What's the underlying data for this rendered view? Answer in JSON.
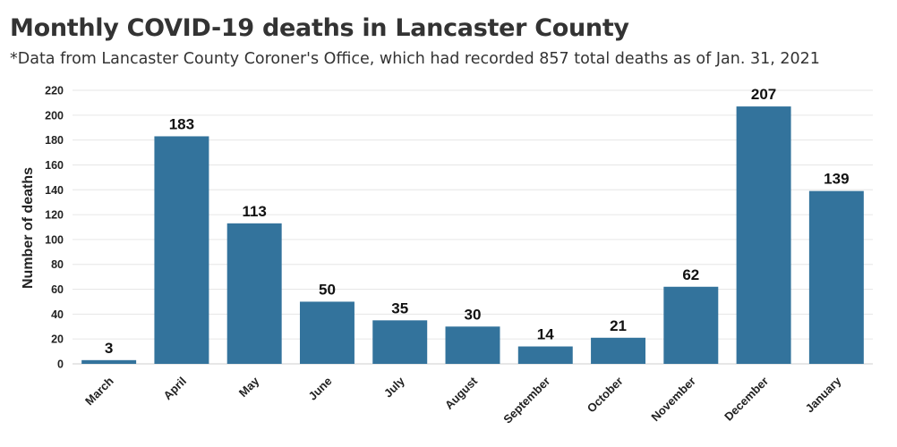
{
  "chart_data": {
    "type": "bar",
    "title": "Monthly COVID-19 deaths in Lancaster County",
    "subtitle": "*Data from Lancaster County Coroner's Office, which had recorded 857 total deaths as of Jan. 31, 2021",
    "xlabel": "",
    "ylabel": "Number of deaths",
    "categories": [
      "March",
      "April",
      "May",
      "June",
      "July",
      "August",
      "September",
      "October",
      "November",
      "December",
      "January"
    ],
    "values": [
      3,
      183,
      113,
      50,
      35,
      30,
      14,
      21,
      62,
      207,
      139
    ],
    "ylim": [
      0,
      220
    ],
    "yticks": [
      0,
      20,
      40,
      60,
      80,
      100,
      120,
      140,
      160,
      180,
      200,
      220
    ],
    "grid": true,
    "bar_color": "#33739c"
  }
}
